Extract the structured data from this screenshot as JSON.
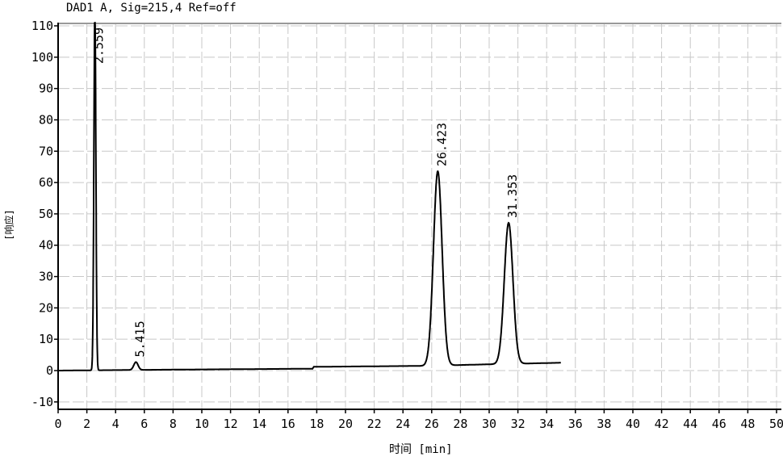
{
  "chart_data": {
    "type": "line",
    "title": "DAD1 A, Sig=215,4 Ref=off",
    "xlabel": "时间 [min]",
    "ylabel": "[响应]",
    "xlim": [
      0,
      50
    ],
    "ylim": [
      -10,
      110
    ],
    "xticks": [
      0,
      2,
      4,
      6,
      8,
      10,
      12,
      14,
      16,
      18,
      20,
      22,
      24,
      26,
      28,
      30,
      32,
      34,
      36,
      38,
      40,
      42,
      44,
      46,
      48,
      50
    ],
    "yticks": [
      -10,
      0,
      10,
      20,
      30,
      40,
      50,
      60,
      70,
      80,
      90,
      100,
      110
    ],
    "grid": true,
    "peaks": [
      {
        "label": "2.559",
        "rt": 2.559,
        "height": 115,
        "width": 0.07
      },
      {
        "label": "5.415",
        "rt": 5.415,
        "height": 2.5,
        "width": 0.15
      },
      {
        "label": "26.423",
        "rt": 26.423,
        "height": 62,
        "width": 0.3
      },
      {
        "label": "31.353",
        "rt": 31.353,
        "height": 45,
        "width": 0.3
      }
    ],
    "baseline": {
      "x": [
        0,
        8,
        17.7,
        17.8,
        25.5,
        30,
        35
      ],
      "y": [
        0,
        0.3,
        0.6,
        1.2,
        1.5,
        2.0,
        2.5
      ]
    },
    "trace_end": 35
  }
}
